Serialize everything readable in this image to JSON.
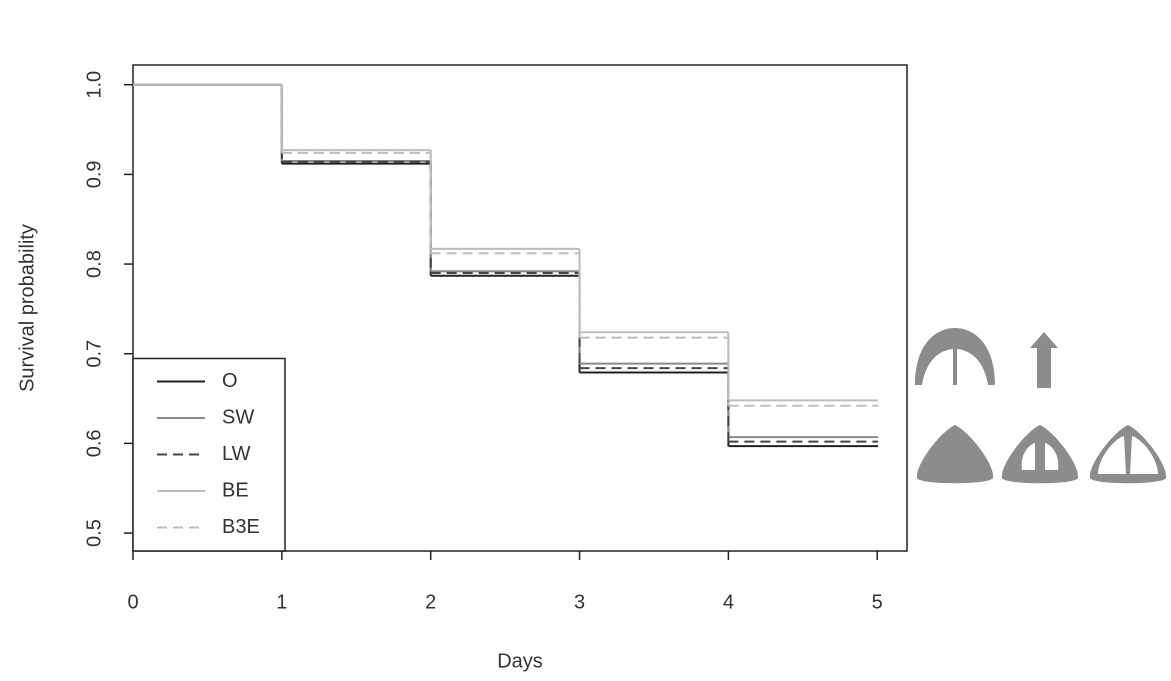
{
  "chart_data": {
    "type": "step",
    "xlabel": "Days",
    "ylabel": "Survival probability",
    "x": [
      0,
      1,
      2,
      3,
      4,
      5
    ],
    "series": [
      {
        "name": "O",
        "color": "#222222",
        "dash": false,
        "values": [
          1,
          0.912,
          0.787,
          0.679,
          0.597,
          0.597
        ]
      },
      {
        "name": "SW",
        "color": "#8a8a8a",
        "dash": false,
        "values": [
          1,
          0.915,
          0.792,
          0.689,
          0.607,
          0.607
        ]
      },
      {
        "name": "LW",
        "color": "#444444",
        "dash": true,
        "values": [
          1,
          0.914,
          0.79,
          0.684,
          0.602,
          0.602
        ]
      },
      {
        "name": "BE",
        "color": "#bdbdbd",
        "dash": false,
        "values": [
          1,
          0.927,
          0.817,
          0.724,
          0.648,
          0.648
        ]
      },
      {
        "name": "B3E",
        "color": "#bdbdbd",
        "dash": true,
        "values": [
          1,
          0.924,
          0.812,
          0.718,
          0.642,
          0.642
        ]
      }
    ],
    "xlim": [
      0,
      5.2
    ],
    "ylim": [
      0.48,
      1.022
    ],
    "xticks": [
      0,
      1,
      2,
      3,
      4,
      5
    ],
    "yticks": [
      0.5,
      0.6,
      0.7,
      0.8,
      0.9,
      {
        "value": 1,
        "label": "1.0"
      }
    ],
    "legend": "bottom-left"
  }
}
